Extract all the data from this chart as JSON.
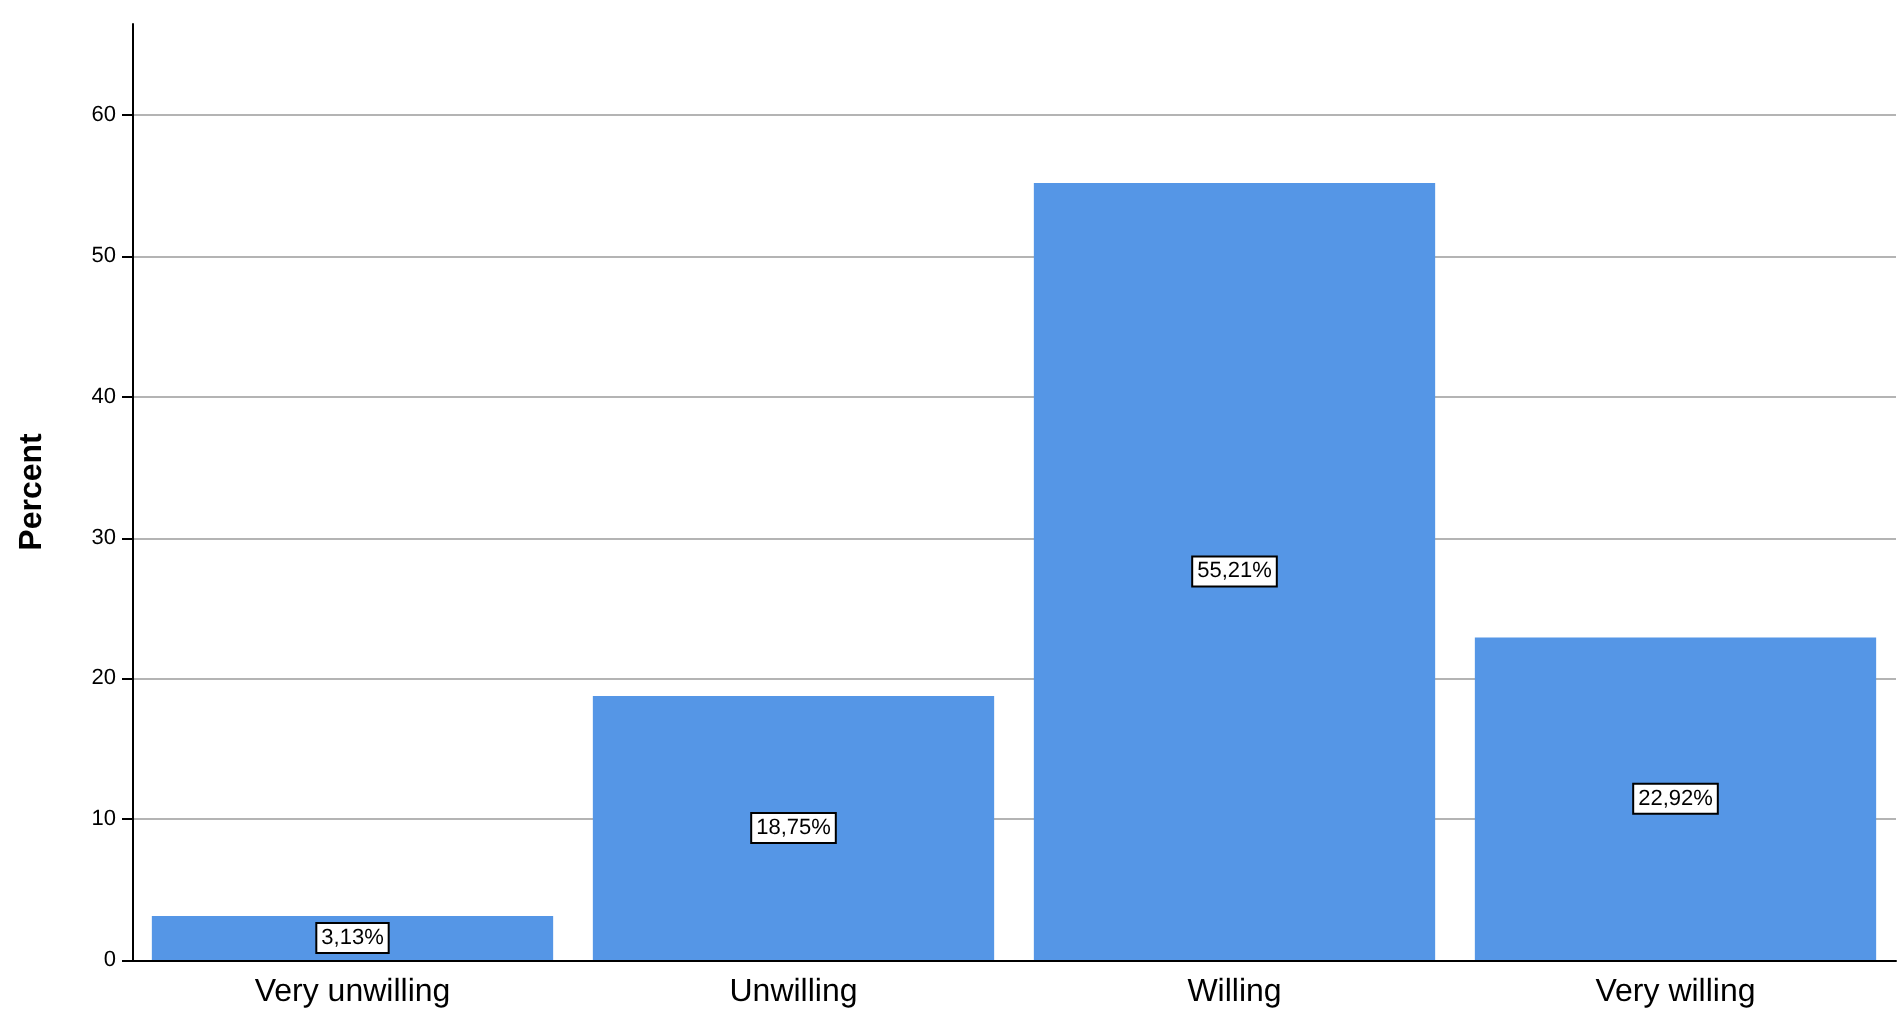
{
  "chart_data": {
    "type": "bar",
    "ylabel": "Percent",
    "categories": [
      "Very unwilling",
      "Unwilling",
      "Willing",
      "Very willing"
    ],
    "values": [
      3.13,
      18.75,
      55.21,
      22.92
    ],
    "color": "#5596e6",
    "value_labels": [
      "3,13%",
      "18,75%",
      "55,21%",
      "22,92%"
    ],
    "ylim": [
      0,
      66.5
    ],
    "yticks": [
      0,
      10,
      20,
      30,
      40,
      50,
      60
    ],
    "grid": "y"
  }
}
